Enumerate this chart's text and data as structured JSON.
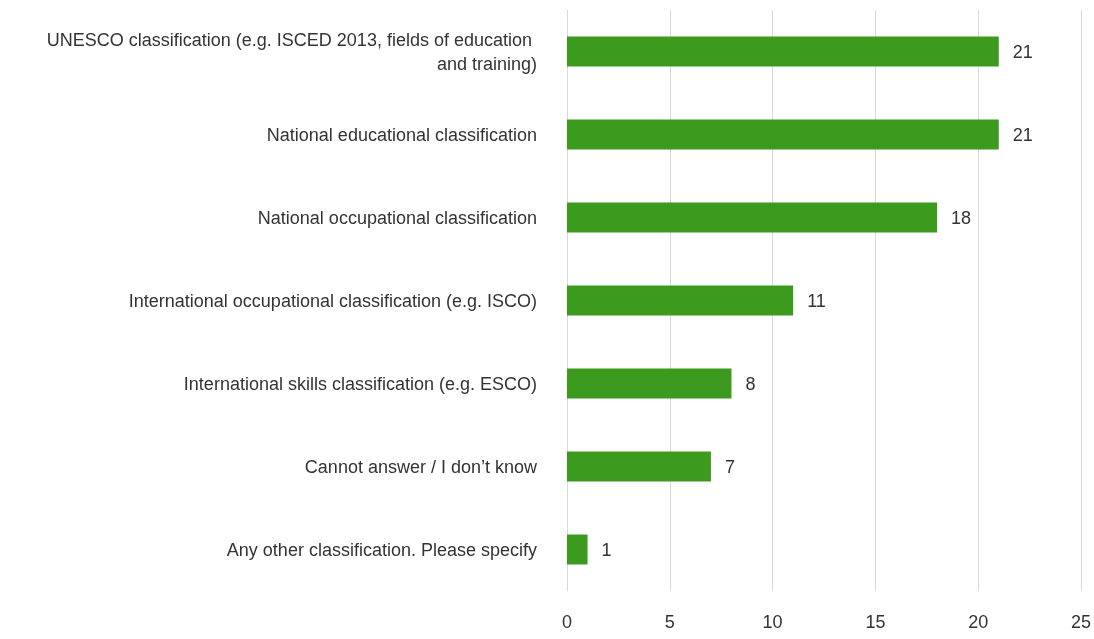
{
  "chart_data": {
    "type": "bar",
    "orientation": "horizontal",
    "categories": [
      "UNESCO classification (e.g. ISCED 2013, fields of education and training)",
      "National educational classification",
      "National occupational classification",
      "International occupational classification (e.g. ISCO)",
      "International skills classification (e.g. ESCO)",
      "Cannot answer / I don’t know",
      "Any other classification. Please specify"
    ],
    "values": [
      21,
      21,
      18,
      11,
      8,
      7,
      1
    ],
    "color": "#3c9a1e",
    "xlim": [
      0,
      25
    ],
    "xticks": [
      0,
      5,
      10,
      15,
      20,
      25
    ],
    "grid": "x",
    "data_labels": true
  }
}
